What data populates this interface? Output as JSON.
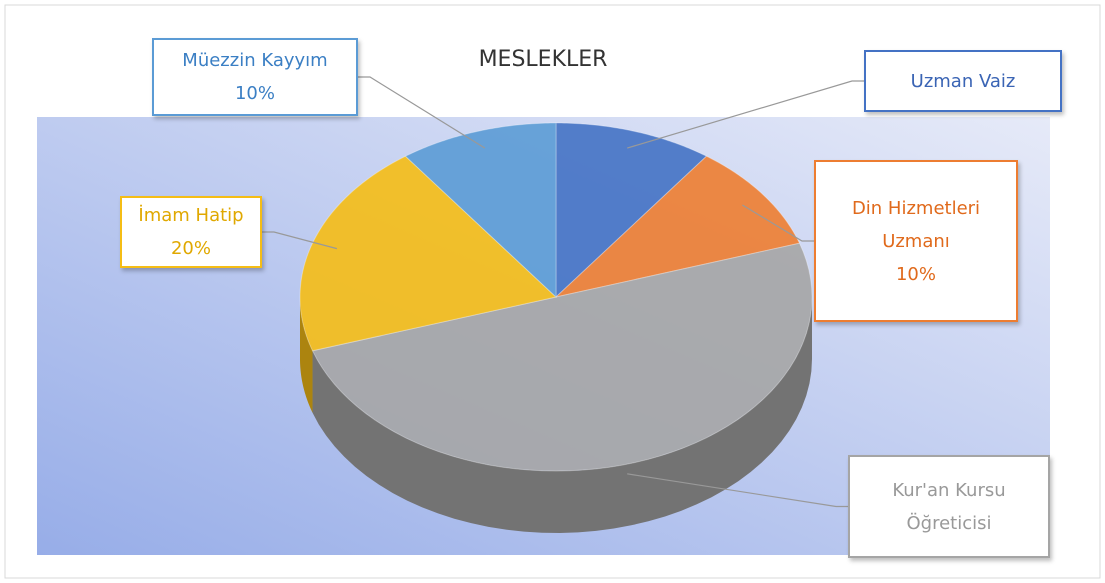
{
  "chart_data": {
    "type": "pie3d",
    "title": "MESLEKLER",
    "categories": [
      "Uzman Vaiz",
      "Din Hizmetleri Uzmanı",
      "Kur'an Kursu Öğreticisi",
      "İmam Hatip",
      "Müezzin Kayyım"
    ],
    "values": [
      10,
      10,
      50,
      20,
      10
    ],
    "value_labels": [
      null,
      "10%",
      null,
      "20%",
      "10%"
    ],
    "colors": [
      "#4472c4",
      "#ed7d31",
      "#a5a5a5",
      "#f5bd15",
      "#5b9bd5"
    ]
  }
}
